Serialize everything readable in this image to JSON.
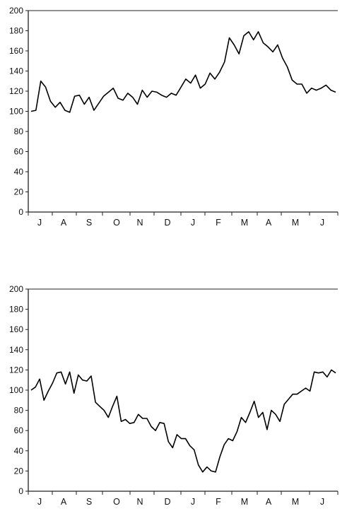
{
  "chart_data": [
    {
      "type": "line",
      "title": "",
      "xlabel": "",
      "ylabel": "",
      "ylim": [
        0,
        200
      ],
      "yticks": [
        0,
        20,
        40,
        60,
        80,
        100,
        120,
        140,
        160,
        180,
        200
      ],
      "month_labels": [
        "J",
        "A",
        "S",
        "O",
        "N",
        "D",
        "J",
        "F",
        "M",
        "A",
        "M",
        "J"
      ],
      "grid": false,
      "series": [
        {
          "values": [
            100,
            101,
            130,
            124,
            110,
            104,
            109,
            101,
            99,
            115,
            116,
            107,
            114,
            101,
            108,
            115,
            119,
            123,
            113,
            111,
            118,
            114,
            107,
            121,
            114,
            120,
            119,
            116,
            114,
            118,
            116,
            124,
            132,
            128,
            136,
            123,
            127,
            138,
            132,
            139,
            149,
            173,
            166,
            157,
            175,
            179,
            171,
            179,
            168,
            164,
            159,
            166,
            153,
            144,
            131,
            127,
            127,
            118,
            123,
            121,
            123,
            126,
            121,
            119
          ]
        }
      ]
    },
    {
      "type": "line",
      "title": "",
      "xlabel": "",
      "ylabel": "",
      "ylim": [
        0,
        200
      ],
      "yticks": [
        0,
        20,
        40,
        60,
        80,
        100,
        120,
        140,
        160,
        180,
        200
      ],
      "month_labels": [
        "J",
        "A",
        "S",
        "O",
        "N",
        "D",
        "J",
        "F",
        "M",
        "A",
        "M",
        "J"
      ],
      "grid": false,
      "series": [
        {
          "values": [
            100,
            103,
            111,
            90,
            99,
            107,
            117,
            118,
            106,
            118,
            97,
            115,
            110,
            109,
            114,
            88,
            84,
            80,
            73,
            84,
            94,
            69,
            71,
            67,
            68,
            76,
            72,
            72,
            64,
            60,
            68,
            67,
            49,
            43,
            56,
            52,
            52,
            45,
            41,
            26,
            19,
            24,
            20,
            19,
            34,
            46,
            52,
            50,
            59,
            73,
            68,
            78,
            89,
            73,
            78,
            61,
            80,
            76,
            69,
            86,
            91,
            96,
            96,
            99,
            102,
            99,
            118,
            117,
            118,
            113,
            120,
            117
          ]
        }
      ]
    }
  ]
}
